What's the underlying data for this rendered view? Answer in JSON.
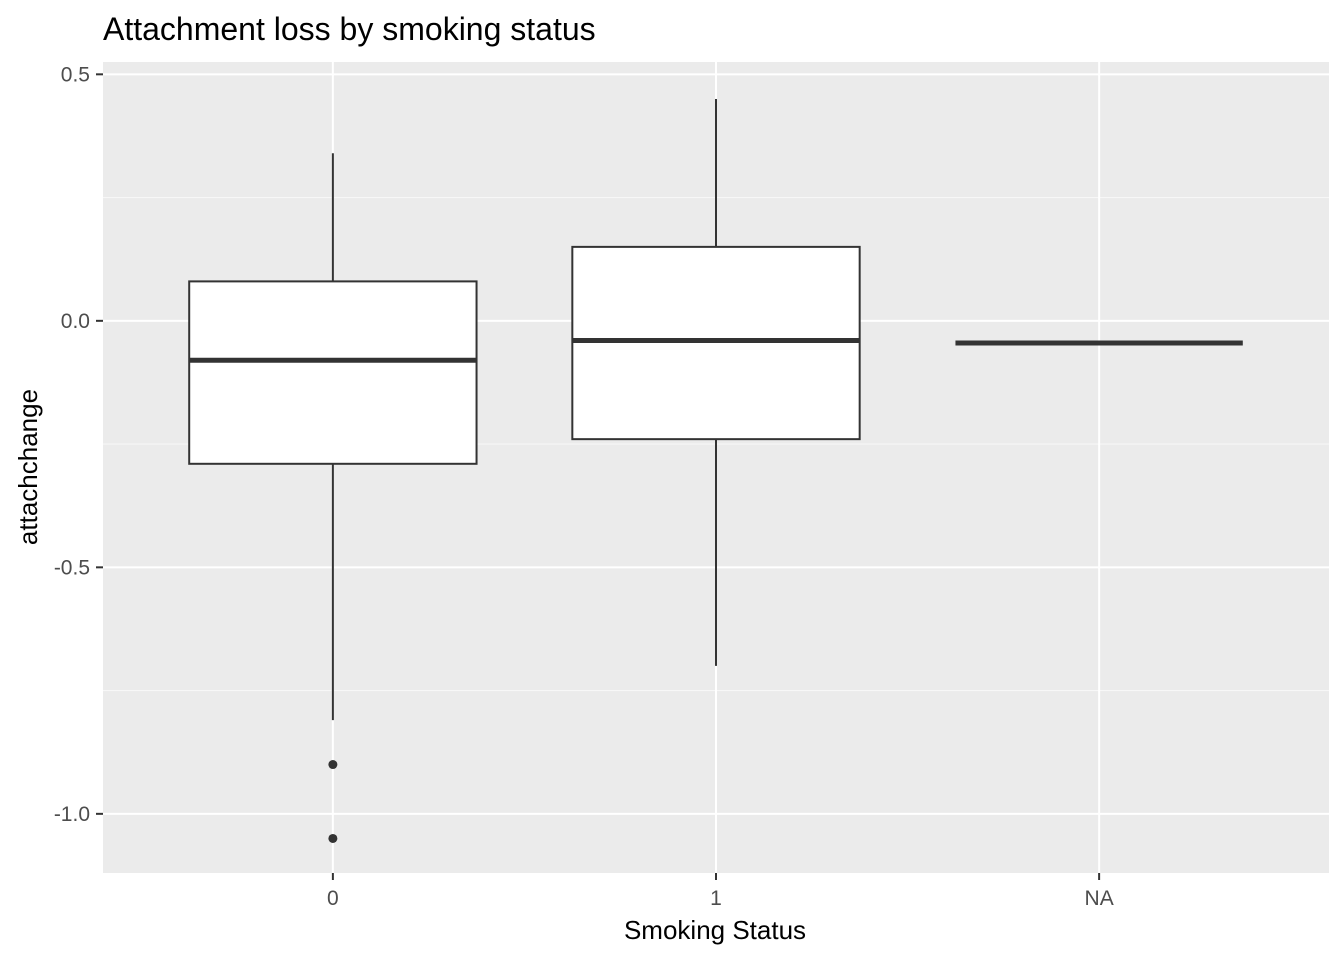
{
  "chart_data": {
    "type": "boxplot",
    "title": "Attachment loss by smoking status",
    "xlabel": "Smoking Status",
    "ylabel": "attachchange",
    "categories": [
      "0",
      "1",
      "NA"
    ],
    "ylim": [
      -1.12,
      0.525
    ],
    "y_ticks": [
      0.5,
      0.0,
      -0.5,
      -1.0
    ],
    "y_tick_labels": [
      "0.5",
      "0.0",
      "-0.5",
      "-1.0"
    ],
    "grid": true,
    "boxes": [
      {
        "category": "0",
        "lower_whisker": -0.81,
        "q1": -0.29,
        "median": -0.08,
        "q3": 0.08,
        "upper_whisker": 0.34,
        "outliers": [
          -0.9,
          -1.05
        ]
      },
      {
        "category": "1",
        "lower_whisker": -0.7,
        "q1": -0.24,
        "median": -0.04,
        "q3": 0.15,
        "upper_whisker": 0.45,
        "outliers": []
      },
      {
        "category": "NA",
        "lower_whisker": -0.045,
        "q1": -0.045,
        "median": -0.045,
        "q3": -0.045,
        "upper_whisker": -0.045,
        "outliers": []
      }
    ],
    "colors": {
      "panel_background": "#ebebeb",
      "grid_major": "#ffffff",
      "grid_minor": "#f7f7f7",
      "box_fill": "#ffffff",
      "box_line": "#333333",
      "outlier": "#333333",
      "tick_mark": "#333333"
    }
  }
}
